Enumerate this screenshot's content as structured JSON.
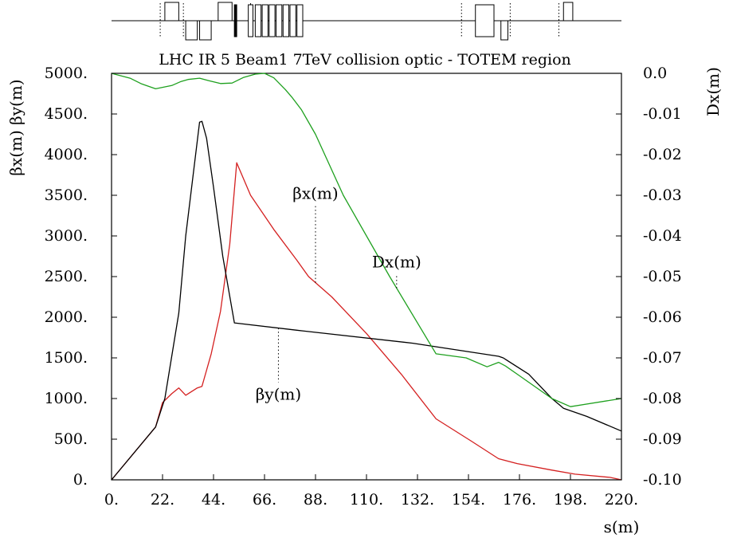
{
  "chart_data": {
    "type": "line",
    "title": "LHC IR 5 Beam1 7TeV collision optic - TOTEM region",
    "xlabel": "s(m)",
    "ylabel_left": "βx(m)  βy(m)",
    "ylabel_right": "Dx(m)",
    "xlim": [
      0,
      220
    ],
    "ylim_left": [
      0,
      5000
    ],
    "ylim_right": [
      -0.1,
      0.0
    ],
    "x_ticks": [
      "0.",
      "22.",
      "44.",
      "66.",
      "88.",
      "110.",
      "132.",
      "154.",
      "176.",
      "198.",
      "220."
    ],
    "y_left_ticks": [
      "0.",
      "500.",
      "1000.",
      "1500.",
      "2000.",
      "2500.",
      "3000.",
      "3500.",
      "4000.",
      "4500.",
      "5000."
    ],
    "y_right_ticks": [
      "-0.10",
      "-0.09",
      "-0.08",
      "-0.07",
      "-0.06",
      "-0.05",
      "-0.04",
      "-0.03",
      "-0.02",
      "-0.01",
      "0.0"
    ],
    "grid": false,
    "series": [
      {
        "name": "βx(m)",
        "axis": "left",
        "color": "#d42020",
        "x": [
          0,
          19,
          22,
          26,
          29,
          32,
          37,
          39,
          43,
          47,
          51,
          54,
          60,
          70,
          80,
          85,
          95,
          110,
          125,
          140,
          155,
          167,
          175,
          190,
          200,
          215,
          220
        ],
        "y": [
          0,
          650,
          950,
          1060,
          1130,
          1040,
          1130,
          1150,
          1550,
          2070,
          2900,
          3900,
          3500,
          3080,
          2700,
          2500,
          2250,
          1800,
          1300,
          750,
          480,
          260,
          200,
          120,
          70,
          30,
          0
        ]
      },
      {
        "name": "βy(m)",
        "axis": "left",
        "color": "#000000",
        "x": [
          0,
          19,
          23,
          29,
          32,
          38,
          39,
          41,
          44,
          48,
          53,
          80,
          130,
          167,
          169,
          180,
          190,
          195,
          205,
          220
        ],
        "y": [
          0,
          650,
          1000,
          2050,
          3000,
          4400,
          4410,
          4200,
          3600,
          2750,
          1930,
          1840,
          1680,
          1520,
          1500,
          1300,
          1000,
          880,
          780,
          600
        ]
      },
      {
        "name": "Dx(m)",
        "axis": "right",
        "color": "#1ea01e",
        "x": [
          0,
          8,
          13,
          19,
          26,
          30,
          33,
          38,
          42,
          47,
          52,
          57,
          62,
          66,
          70,
          75,
          78,
          82,
          88,
          100,
          120,
          140,
          153,
          162,
          167,
          170,
          175,
          190,
          198,
          220
        ],
        "y": [
          0.0,
          -0.0012,
          -0.0026,
          -0.0038,
          -0.003,
          -0.002,
          -0.0015,
          -0.0012,
          -0.0018,
          -0.0025,
          -0.0024,
          -0.001,
          -0.0002,
          0.0,
          -0.0011,
          -0.004,
          -0.006,
          -0.009,
          -0.015,
          -0.03,
          -0.05,
          -0.069,
          -0.07,
          -0.0722,
          -0.0711,
          -0.072,
          -0.074,
          -0.08,
          -0.082,
          -0.08
        ]
      }
    ],
    "annotations": [
      {
        "text": "Dx(m)",
        "series": "Dx(m)",
        "x": 123
      },
      {
        "text": "βx(m)",
        "series": "βx(m)",
        "x": 88
      },
      {
        "text": "βy(m)",
        "series": "βy(m)",
        "x": 72
      }
    ],
    "element_bar": {
      "markers": [
        21,
        31,
        60,
        151,
        172,
        193
      ],
      "elements": [
        {
          "s": 23,
          "w": 6,
          "dir": "up"
        },
        {
          "s": 32,
          "w": 5,
          "dir": "down"
        },
        {
          "s": 38,
          "w": 5,
          "dir": "down"
        },
        {
          "s": 46,
          "w": 6,
          "dir": "up"
        },
        {
          "s": 53,
          "w": 1,
          "dir": "both"
        },
        {
          "s": 59,
          "w": 2,
          "dir": "both"
        },
        {
          "s": 62,
          "w": 2.5,
          "dir": "both"
        },
        {
          "s": 65,
          "w": 2.5,
          "dir": "both"
        },
        {
          "s": 68,
          "w": 2.5,
          "dir": "both"
        },
        {
          "s": 71,
          "w": 2.5,
          "dir": "both"
        },
        {
          "s": 74,
          "w": 2.5,
          "dir": "both"
        },
        {
          "s": 77,
          "w": 2.5,
          "dir": "both"
        },
        {
          "s": 80,
          "w": 2.5,
          "dir": "both"
        },
        {
          "s": 157,
          "w": 8,
          "dir": "both"
        },
        {
          "s": 168,
          "w": 3,
          "dir": "down"
        },
        {
          "s": 195,
          "w": 4,
          "dir": "up"
        }
      ]
    }
  }
}
